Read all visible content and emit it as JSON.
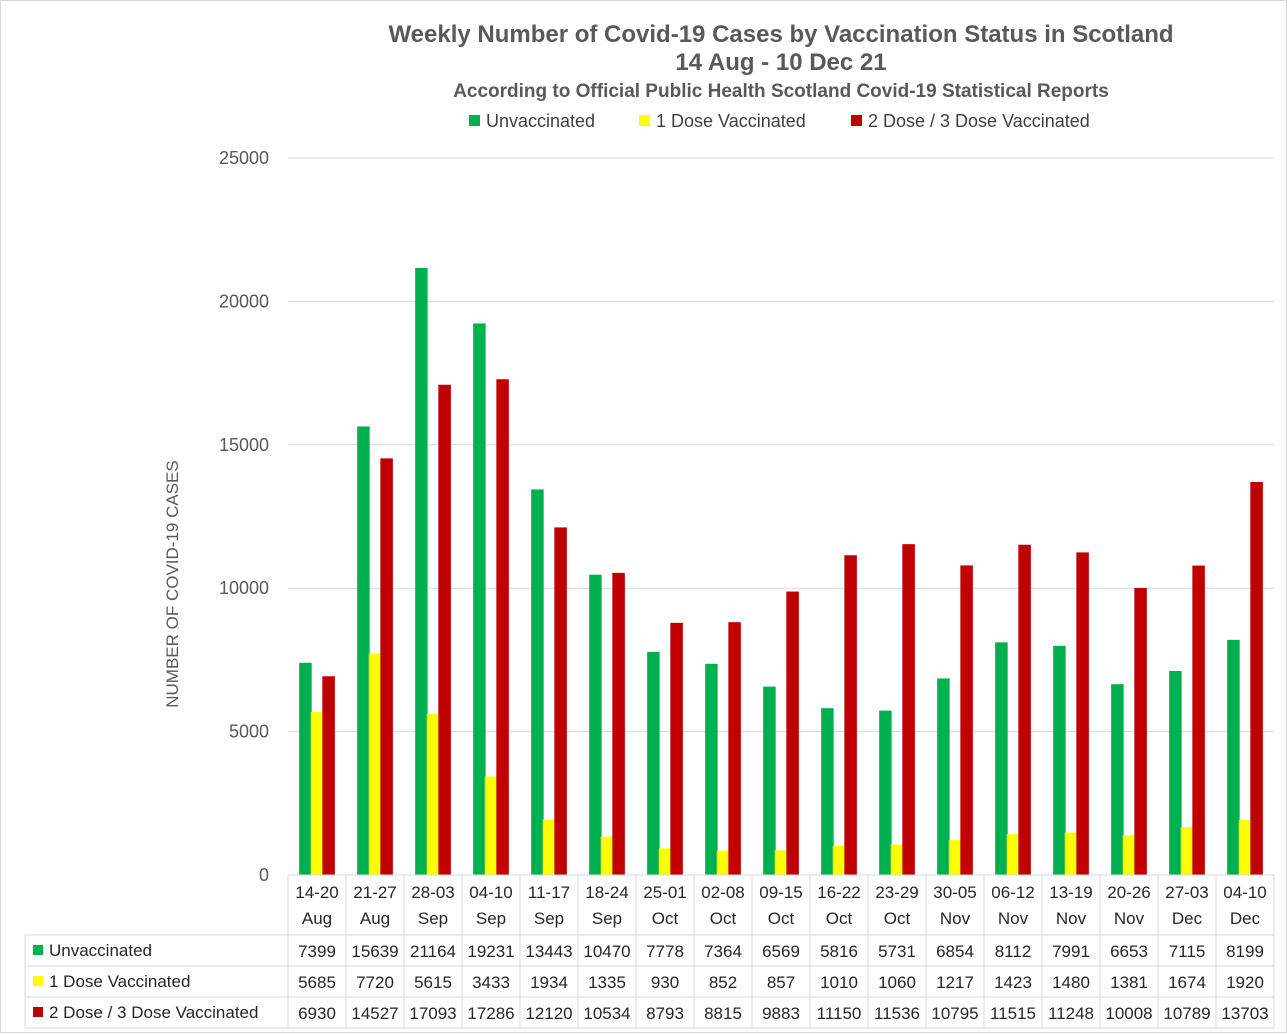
{
  "chart_data": {
    "type": "bar",
    "title": "Weekly Number of Covid-19 Cases by Vaccination Status in Scotland",
    "title_line2": "14 Aug - 10 Dec 21",
    "subtitle": "According to Official Public Health Scotland Covid-19 Statistical Reports",
    "ylabel": "NUMBER OF COVID-19 CASES",
    "xlabel": "",
    "ylim": [
      0,
      25000
    ],
    "yticks": [
      0,
      5000,
      10000,
      15000,
      20000,
      25000
    ],
    "grid": true,
    "legend_position": "top",
    "categories": [
      [
        "14-20",
        "Aug"
      ],
      [
        "21-27",
        "Aug"
      ],
      [
        "28-03",
        "Sep"
      ],
      [
        "04-10",
        "Sep"
      ],
      [
        "11-17",
        "Sep"
      ],
      [
        "18-24",
        "Sep"
      ],
      [
        "25-01",
        "Oct"
      ],
      [
        "02-08",
        "Oct"
      ],
      [
        "09-15",
        "Oct"
      ],
      [
        "16-22",
        "Oct"
      ],
      [
        "23-29",
        "Oct"
      ],
      [
        "30-05",
        "Nov"
      ],
      [
        "06-12",
        "Nov"
      ],
      [
        "13-19",
        "Nov"
      ],
      [
        "20-26",
        "Nov"
      ],
      [
        "27-03",
        "Dec"
      ],
      [
        "04-10",
        "Dec"
      ]
    ],
    "series": [
      {
        "name": "Unvaccinated",
        "color": "#00b050",
        "values": [
          7399,
          15639,
          21164,
          19231,
          13443,
          10470,
          7778,
          7364,
          6569,
          5816,
          5731,
          6854,
          8112,
          7991,
          6653,
          7115,
          8199
        ]
      },
      {
        "name": "1 Dose Vaccinated",
        "color": "#ffff00",
        "values": [
          5685,
          7720,
          5615,
          3433,
          1934,
          1335,
          930,
          852,
          857,
          1010,
          1060,
          1217,
          1423,
          1480,
          1381,
          1674,
          1920
        ]
      },
      {
        "name": "2 Dose / 3 Dose Vaccinated",
        "color": "#c00000",
        "values": [
          6930,
          14527,
          17093,
          17286,
          12120,
          10534,
          8793,
          8815,
          9883,
          11150,
          11536,
          10795,
          11515,
          11248,
          10008,
          10789,
          13703
        ]
      }
    ]
  }
}
